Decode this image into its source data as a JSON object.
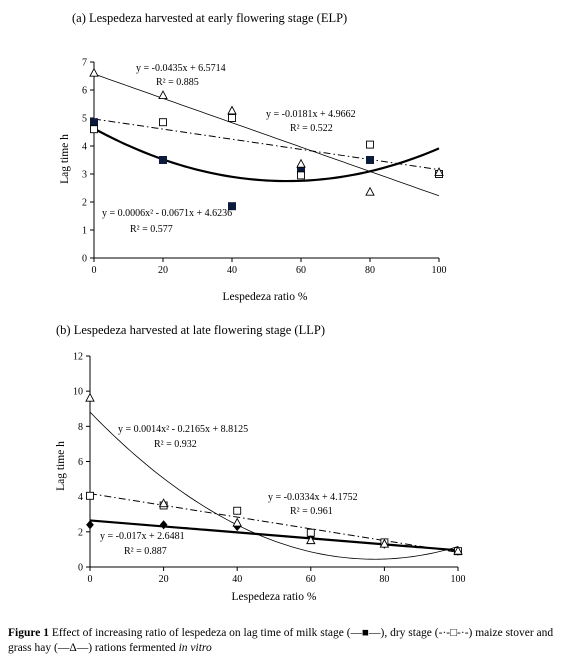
{
  "chart_data": [
    {
      "type": "scatter",
      "title": "(a) Lespedeza harvested at early flowering stage (ELP)",
      "xlabel": "Lespedeza ratio %",
      "ylabel": "Lag time h",
      "xlim": [
        0,
        100
      ],
      "ylim": [
        0,
        7
      ],
      "xticks": [
        "0",
        "20",
        "40",
        "60",
        "80",
        "100"
      ],
      "yticks": [
        "0",
        "1",
        "2",
        "3",
        "4",
        "5",
        "6",
        "7"
      ],
      "grid": false,
      "series": [
        {
          "marker": "filled-square",
          "x": [
            0,
            20,
            40,
            60,
            80
          ],
          "y": [
            4.85,
            3.5,
            1.85,
            3.15,
            3.5
          ],
          "fit": {
            "kind": "poly2",
            "coef": [
              0.0006,
              -0.0671,
              4.6236
            ],
            "line": "solid-thick"
          },
          "equation": "y = 0.0006x² - 0.0671x + 4.6236",
          "r2": "R² = 0.577"
        },
        {
          "marker": "open-square",
          "x": [
            0,
            20,
            40,
            60,
            80,
            100
          ],
          "y": [
            4.6,
            4.85,
            5.0,
            2.95,
            4.05,
            3.0
          ],
          "fit": {
            "kind": "linear",
            "coef": [
              -0.0181,
              4.9662
            ],
            "line": "dash-dot"
          },
          "equation": "y = -0.0181x + 4.9662",
          "r2": "R² = 0.522"
        },
        {
          "marker": "open-triangle",
          "x": [
            0,
            20,
            40,
            60,
            80,
            100
          ],
          "y": [
            6.6,
            5.8,
            5.25,
            3.35,
            2.35,
            3.05
          ],
          "fit": {
            "kind": "linear",
            "coef": [
              -0.0435,
              6.5714
            ],
            "line": "solid-thin"
          },
          "equation": "y = -0.0435x + 6.5714",
          "r2": "R² = 0.885"
        }
      ]
    },
    {
      "type": "scatter",
      "title": "(b) Lespedeza harvested at late flowering stage (LLP)",
      "xlabel": "Lespedeza ratio %",
      "ylabel": "Lag time h",
      "xlim": [
        0,
        100
      ],
      "ylim": [
        0,
        12
      ],
      "xticks": [
        "0",
        "20",
        "40",
        "60",
        "80",
        "100"
      ],
      "yticks": [
        "0",
        "2",
        "4",
        "6",
        "8",
        "10",
        "12"
      ],
      "grid": false,
      "series": [
        {
          "marker": "filled-diamond",
          "x": [
            0,
            20,
            40,
            60,
            80,
            100
          ],
          "y": [
            2.4,
            2.4,
            2.3,
            1.7,
            1.3,
            0.9
          ],
          "fit": {
            "kind": "linear",
            "coef": [
              -0.017,
              2.6481
            ],
            "line": "solid-thick"
          },
          "equation": "y = -0.017x + 2.6481",
          "r2": "R² = 0.887"
        },
        {
          "marker": "open-square",
          "x": [
            0,
            20,
            40,
            60,
            80,
            100
          ],
          "y": [
            4.05,
            3.5,
            3.2,
            1.95,
            1.4,
            0.9
          ],
          "fit": {
            "kind": "linear",
            "coef": [
              -0.0334,
              4.1752
            ],
            "line": "dash-dot"
          },
          "equation": "y = -0.0334x + 4.1752",
          "r2": "R² = 0.961"
        },
        {
          "marker": "open-triangle",
          "x": [
            0,
            20,
            40,
            60,
            80,
            100
          ],
          "y": [
            9.6,
            3.6,
            2.5,
            1.5,
            1.3,
            0.9
          ],
          "fit": {
            "kind": "poly2",
            "coef": [
              0.0014,
              -0.2165,
              8.8125
            ],
            "line": "solid-thin"
          },
          "equation": "y = 0.0014x² - 0.2165x + 8.8125",
          "r2": "R² = 0.932"
        }
      ]
    }
  ],
  "caption": {
    "label": "Figure 1",
    "text": " Effect of increasing ratio of lespedeza on lag time of milk stage (—■—), dry stage (-·-□-·-) maize stover and grass hay (—Δ—) rations fermented ",
    "italic": "in vitro"
  }
}
